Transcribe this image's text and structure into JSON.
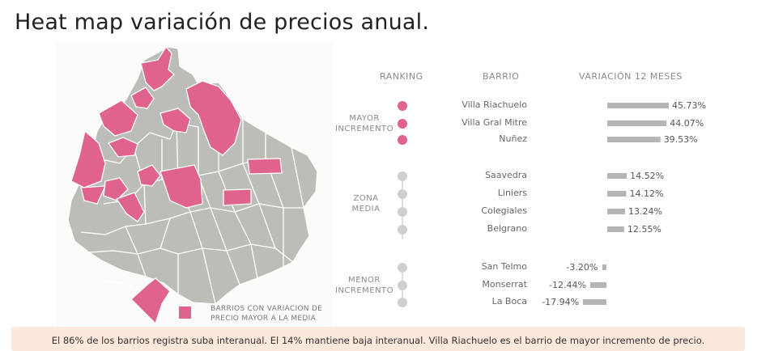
{
  "title": "Heat map variación de precios anual.",
  "colors": {
    "highlight": "#e0638e",
    "neutral": "#bdbdb8",
    "bar": "#b5b5b5",
    "dot_neutral": "#cfcfcf",
    "footer_bg": "#fde8dc"
  },
  "legend": {
    "text_line1": "BARRIOS CON VARIACION DE",
    "text_line2": "PRECIO MAYOR A LA MEDIA"
  },
  "table": {
    "header_ranking": "RANKING",
    "header_barrio": "BARRIO",
    "header_variacion": "VARIACIÓN 12 MESES"
  },
  "groups": {
    "mayor": {
      "line1": "MAYOR",
      "line2": "INCREMENTO"
    },
    "zona": {
      "line1": "ZONA",
      "line2": "MEDIA"
    },
    "menor": {
      "line1": "MENOR",
      "line2": "INCREMENTO"
    }
  },
  "chart_data": {
    "type": "bar",
    "categories": [
      "Villa Riachuelo",
      "Villa Gral Mitre",
      "Nuñez",
      "Saavedra",
      "Liniers",
      "Colegiales",
      "Belgrano",
      "San Telmo",
      "Monserrat",
      "La Boca"
    ],
    "values": [
      45.73,
      44.07,
      39.53,
      14.52,
      14.12,
      13.24,
      12.55,
      -3.2,
      -12.44,
      -17.94
    ],
    "labels": [
      "45.73%",
      "44.07%",
      "39.53%",
      "14.52%",
      "14.12%",
      "13.24%",
      "12.55%",
      "-3.20%",
      "-12.44%",
      "-17.94%"
    ],
    "groups": [
      "mayor",
      "mayor",
      "mayor",
      "zona",
      "zona",
      "zona",
      "zona",
      "menor",
      "menor",
      "menor"
    ]
  },
  "footer": {
    "text": "El 86% de los barrios registra suba interanual. El 14% mantiene baja interanual. Villa Riachuelo es el barrio de mayor incremento de precio."
  }
}
